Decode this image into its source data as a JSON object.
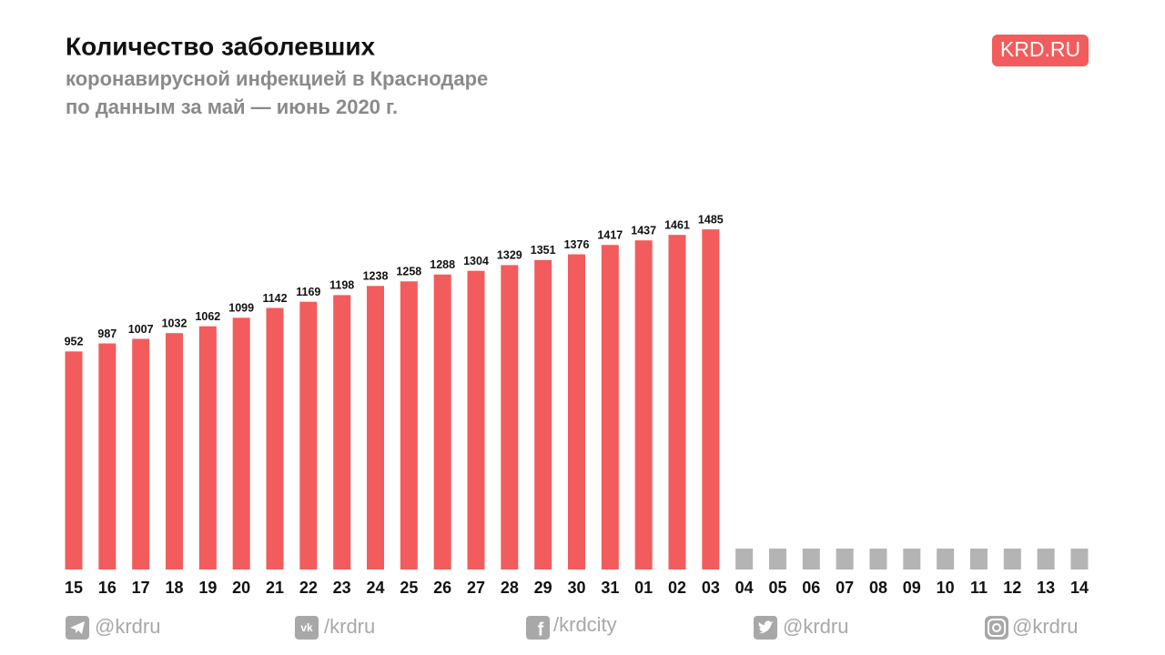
{
  "chart_data": {
    "type": "bar",
    "title": "Количество заболевших",
    "subtitle": [
      "коронавирусной инфекцией в Краснодаре",
      "по данным за май — июнь 2020 г."
    ],
    "logo": "KRD.RU",
    "categories": [
      "15",
      "16",
      "17",
      "18",
      "19",
      "20",
      "21",
      "22",
      "23",
      "24",
      "25",
      "26",
      "27",
      "28",
      "29",
      "30",
      "31",
      "01",
      "02",
      "03",
      "04",
      "05",
      "06",
      "07",
      "08",
      "09",
      "10",
      "11",
      "12",
      "13",
      "14"
    ],
    "values": [
      952,
      987,
      1007,
      1032,
      1062,
      1099,
      1142,
      1169,
      1198,
      1238,
      1258,
      1288,
      1304,
      1329,
      1351,
      1376,
      1417,
      1437,
      1461,
      1485,
      null,
      null,
      null,
      null,
      null,
      null,
      null,
      null,
      null,
      null,
      null
    ],
    "color": "#f25c5c",
    "empty_color": "#b4b4b4",
    "ylim": [
      0,
      1700
    ],
    "footer": [
      "@krdru",
      "/krdru",
      "/krdcity",
      "@krdru",
      "@krdru"
    ]
  }
}
